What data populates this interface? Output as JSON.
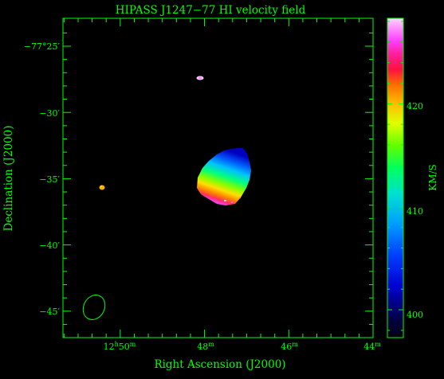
{
  "title": "HIPASS J1247−77   HI velocity field",
  "axes": {
    "xlabel": "Right Ascension (J2000)",
    "ylabel": "Declination (J2000)",
    "x_ticks": [
      {
        "hh": "12",
        "h": "h",
        "mm": "50",
        "m": "m"
      },
      {
        "mm": "48",
        "m": "m"
      },
      {
        "mm": "46",
        "m": "m"
      },
      {
        "mm": "44",
        "m": "m"
      }
    ],
    "y_ticks": [
      {
        "label": "−77°25′"
      },
      {
        "label": "−30′"
      },
      {
        "label": "−35′"
      },
      {
        "label": "−40′"
      },
      {
        "label": "−45′"
      }
    ]
  },
  "colorbar": {
    "label": "KM/S",
    "ticks": [
      "420",
      "410",
      "400"
    ],
    "min": 397.3,
    "max": 428.3
  },
  "colors": {
    "axes": "#00ff00",
    "background": "#000000"
  }
}
